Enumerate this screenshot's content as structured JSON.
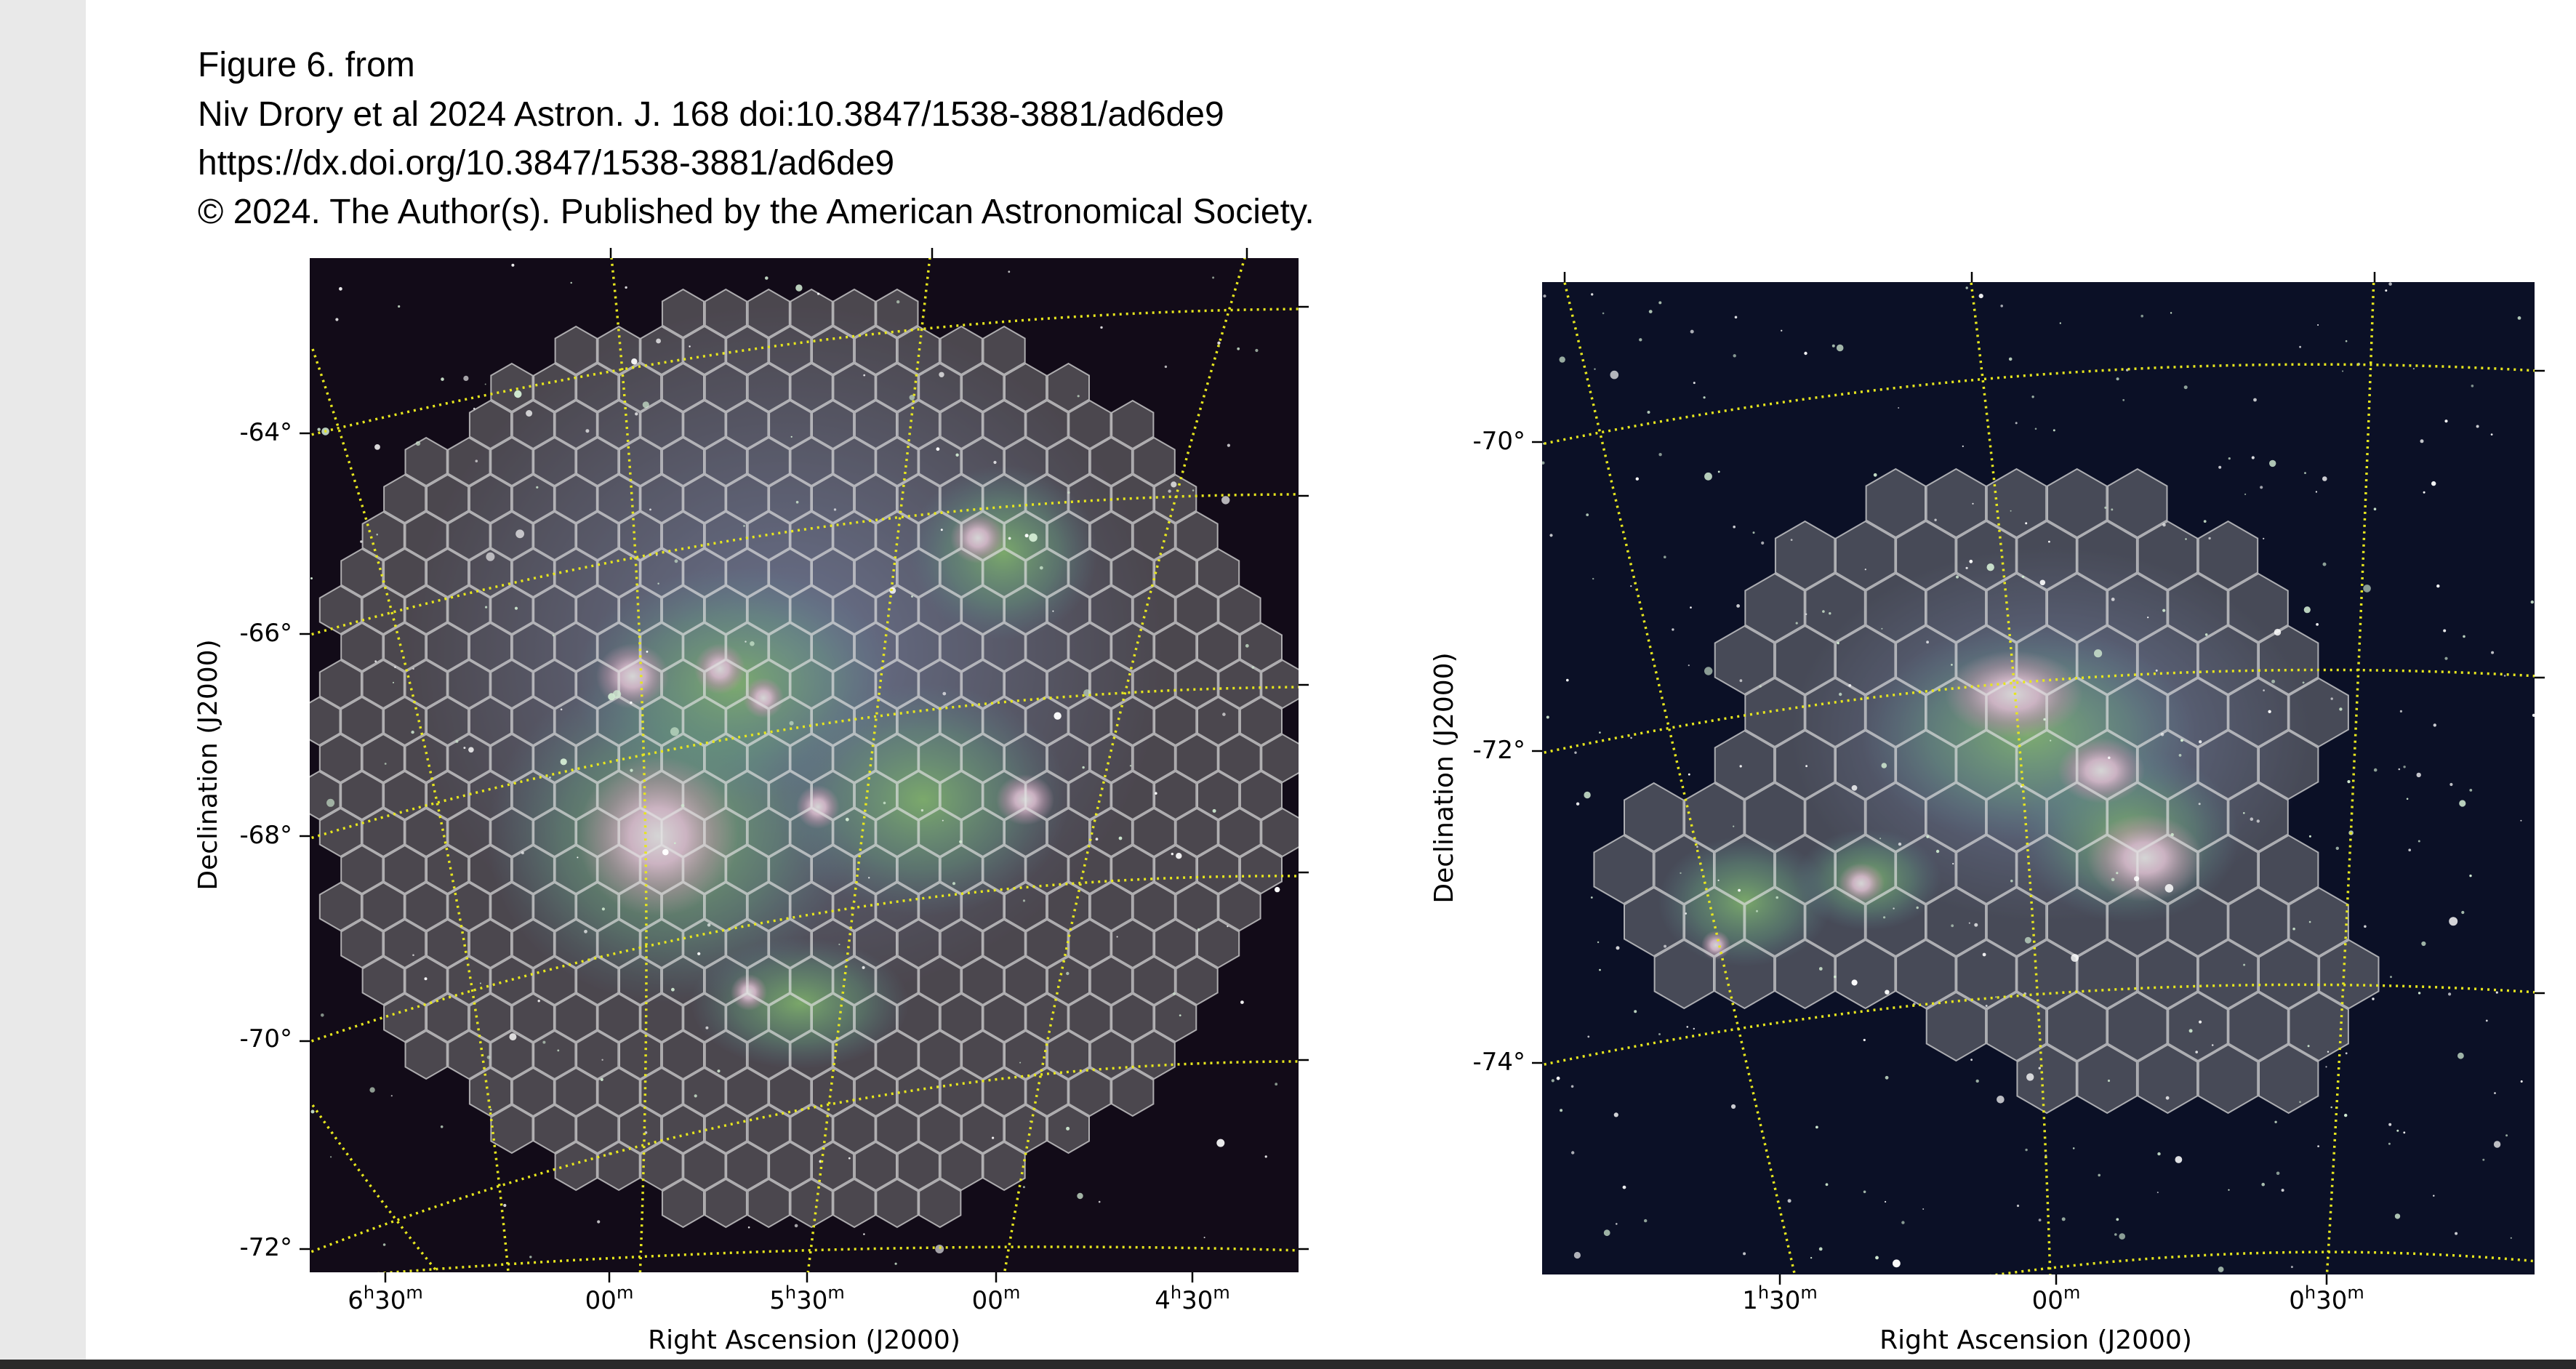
{
  "caption": {
    "line1": "Figure 6. from",
    "line2": "Niv Drory et al 2024 Astron. J. 168 doi:10.3847/1538-3881/ad6de9",
    "line3": "https://dx.doi.org/10.3847/1538-3881/ad6de9",
    "line4": "© 2024. The Author(s). Published by the American Astronomical Society."
  },
  "panels": {
    "left": {
      "dec_ticks": [
        "-64°",
        "-66°",
        "-68°",
        "-70°",
        "-72°"
      ],
      "ra_ticks": [
        {
          "h": "6",
          "u1": "h",
          "m": "30",
          "u2": "m"
        },
        {
          "h": "",
          "u1": "",
          "m": "00",
          "u2": "m"
        },
        {
          "h": "5",
          "u1": "h",
          "m": "30",
          "u2": "m"
        },
        {
          "h": "",
          "u1": "",
          "m": "00",
          "u2": "m"
        },
        {
          "h": "4",
          "u1": "h",
          "m": "30",
          "u2": "m"
        }
      ],
      "xlabel": "Right Ascension (J2000)",
      "ylabel": "Declination (J2000)"
    },
    "right": {
      "dec_ticks": [
        "-70°",
        "-72°",
        "-74°"
      ],
      "ra_ticks": [
        {
          "h": "1",
          "u1": "h",
          "m": "30",
          "u2": "m"
        },
        {
          "h": "",
          "u1": "",
          "m": "00",
          "u2": "m"
        },
        {
          "h": "0",
          "u1": "h",
          "m": "30",
          "u2": "m"
        }
      ],
      "xlabel": "Right Ascension (J2000)",
      "ylabel": "Declination (J2000)"
    }
  },
  "colors": {
    "sky_left": "#120b18",
    "sky_right": "#0b1026",
    "grid": "#e6e61e",
    "hex_fill": "#9a9a9a",
    "hex_stroke": "#d8d8d8",
    "emission_green": "#5ab24a",
    "emission_pink": "#f2b8dc"
  }
}
